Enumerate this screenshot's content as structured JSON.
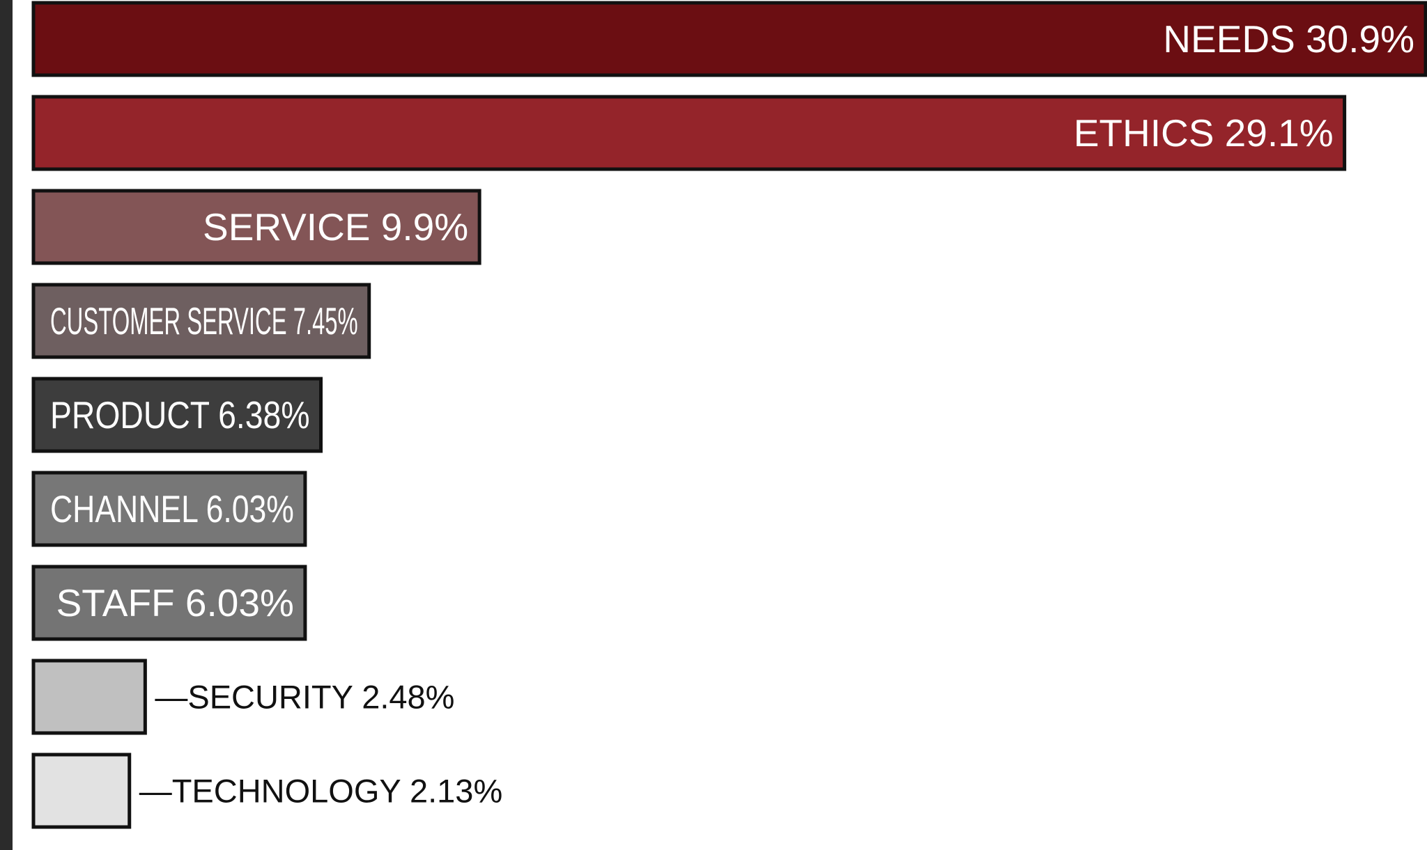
{
  "chart_data": {
    "type": "bar",
    "orientation": "horizontal",
    "categories": [
      "NEEDS",
      "ETHICS",
      "SERVICE",
      "CUSTOMER SERVICE",
      "PRODUCT",
      "CHANNEL",
      "STAFF",
      "SECURITY",
      "TECHNOLOGY"
    ],
    "values": [
      30.9,
      29.1,
      9.9,
      7.45,
      6.38,
      6.03,
      6.03,
      2.48,
      2.13
    ],
    "value_labels": [
      "30.9%",
      "29.1%",
      "9.9%",
      "7.45%",
      "6.38%",
      "6.03%",
      "6.03%",
      "2.48%",
      "2.13%"
    ],
    "colors": [
      "#6b0e12",
      "#94242a",
      "#835556",
      "#6e5f60",
      "#3d3d3d",
      "#777777",
      "#747474",
      "#c0c0c0",
      "#e2e2e2"
    ],
    "title": "",
    "xlabel": "",
    "ylabel": "",
    "grid": false,
    "legend": "none",
    "outside_label_prefix": "—"
  }
}
